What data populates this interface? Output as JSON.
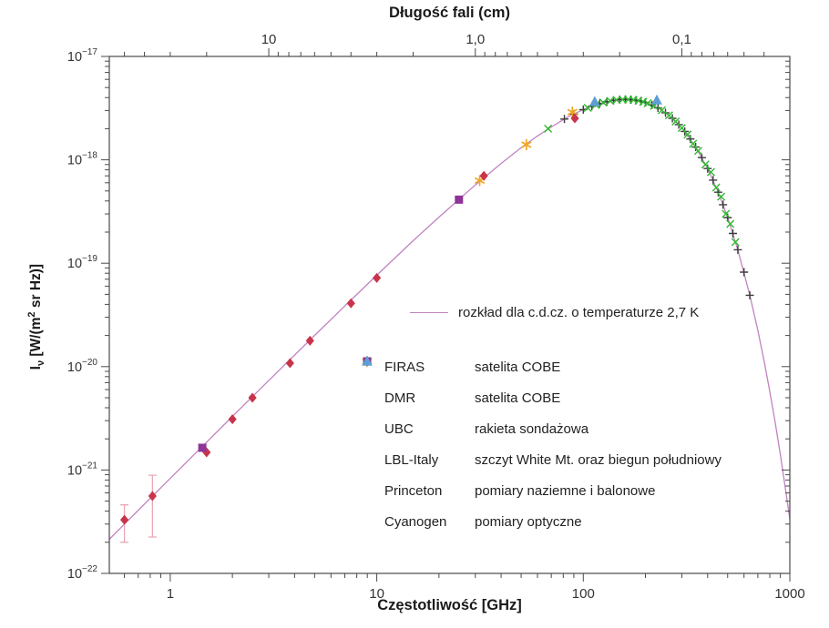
{
  "titles": {
    "top_axis_title": "Długość fali (cm)",
    "bottom_axis_title": "Częstotliwość [GHz]",
    "ylabel_parts": {
      "sym": "I",
      "sym_sub": "ν",
      "unit_pre": " [W/(m",
      "unit_sup": "2",
      "unit_post": " sr Hz)]"
    }
  },
  "legend": {
    "curve_label": "rozkład dla c.d.cz. o temperaturze 2,7 K",
    "entries": [
      {
        "name": "FIRAS",
        "desc": "satelita COBE"
      },
      {
        "name": "DMR",
        "desc": "satelita COBE"
      },
      {
        "name": "UBC",
        "desc": "rakieta sondażowa"
      },
      {
        "name": "LBL-Italy",
        "desc": "szczyt White Mt. oraz biegun południowy"
      },
      {
        "name": "Princeton",
        "desc": "pomiary naziemne i balonowe"
      },
      {
        "name": "Cyanogen",
        "desc": "pomiary optyczne"
      }
    ]
  },
  "colors": {
    "curve": "#c083c0",
    "error_bar": "#e8a9b5",
    "axis": "#4a4a4a",
    "tick_text": "#333333"
  },
  "chart_data": {
    "type": "scatter",
    "title": "",
    "xlabel": "Częstotliwość [GHz]",
    "ylabel": "Iν [W/(m² sr Hz)]",
    "top_xlabel": "Długość fali (cm)",
    "x_axis": {
      "scale": "log",
      "min": 0.507,
      "max": 1000,
      "major": [
        {
          "freq": 1,
          "label": "1"
        },
        {
          "freq": 10,
          "label": "10"
        },
        {
          "freq": 100,
          "label": "100"
        },
        {
          "freq": 1000,
          "label": "1000"
        }
      ]
    },
    "top_axis": {
      "scale": "log",
      "unit": "cm",
      "wavelength_freq_product_cm_GHz": 30,
      "major": [
        {
          "freq": 3,
          "label": "10"
        },
        {
          "freq": 30,
          "label": "1,0"
        },
        {
          "freq": 300,
          "label": "0,1"
        }
      ],
      "minor_wavelengths_cm": [
        50,
        40,
        30,
        20,
        9,
        8,
        7,
        6,
        5,
        4,
        3,
        2,
        0.9,
        0.8,
        0.7,
        0.6,
        0.5,
        0.4,
        0.3,
        0.2,
        0.09,
        0.08,
        0.07,
        0.06,
        0.05,
        0.04
      ]
    },
    "y_axis": {
      "scale": "log",
      "min": 1e-22,
      "max": 1e-17,
      "exponents": [
        -17,
        -18,
        -19,
        -20,
        -21,
        -22
      ]
    },
    "curve": {
      "name": "rozkład dla c.d.cz. o temperaturze 2,7 K",
      "temperature_label": "2,7 K",
      "points": [
        [
          0.507,
          2.14e-22
        ],
        [
          0.6,
          3e-22
        ],
        [
          0.8,
          5.32e-22
        ],
        [
          1.0,
          8.3e-22
        ],
        [
          1.5,
          1.86e-21
        ],
        [
          2,
          3.29e-21
        ],
        [
          3,
          7.34e-21
        ],
        [
          5,
          2e-20
        ],
        [
          7,
          3.86e-20
        ],
        [
          10,
          7.66e-20
        ],
        [
          15,
          1.65e-19
        ],
        [
          20,
          2.79e-19
        ],
        [
          30,
          5.72e-19
        ],
        [
          40,
          9.23e-19
        ],
        [
          50,
          1.31e-18
        ],
        [
          60,
          1.7e-18
        ],
        [
          70,
          2.08e-18
        ],
        [
          85,
          2.63e-18
        ],
        [
          100,
          3.06e-18
        ],
        [
          120,
          3.5e-18
        ],
        [
          140,
          3.76e-18
        ],
        [
          160,
          3.84e-18
        ],
        [
          180,
          3.77e-18
        ],
        [
          200,
          3.59e-18
        ],
        [
          230,
          3.18e-18
        ],
        [
          260,
          2.69e-18
        ],
        [
          300,
          2.03e-18
        ],
        [
          350,
          1.33e-18
        ],
        [
          400,
          8.23e-19
        ],
        [
          450,
          4.86e-19
        ],
        [
          500,
          2.76e-19
        ],
        [
          560,
          1.35e-19
        ],
        [
          640,
          4.9e-20
        ],
        [
          700,
          2.24e-20
        ],
        [
          750,
          1.14e-20
        ],
        [
          800,
          5.74e-21
        ],
        [
          850,
          2.86e-21
        ],
        [
          900,
          1.41e-21
        ],
        [
          950,
          6.85e-22
        ],
        [
          1000,
          3.35e-22
        ]
      ]
    },
    "series": [
      {
        "name": "FIRAS",
        "marker": "plus",
        "color": "#3c3c3c",
        "points": [
          [
            81,
            2.48e-18
          ],
          [
            90,
            2.77e-18
          ],
          [
            100,
            3.06e-18
          ],
          [
            110,
            3.3e-18
          ],
          [
            120,
            3.5e-18
          ],
          [
            130,
            3.65e-18
          ],
          [
            140,
            3.76e-18
          ],
          [
            150,
            3.82e-18
          ],
          [
            160,
            3.84e-18
          ],
          [
            170,
            3.82e-18
          ],
          [
            180,
            3.77e-18
          ],
          [
            190,
            3.69e-18
          ],
          [
            200,
            3.59e-18
          ],
          [
            215,
            3.4e-18
          ],
          [
            230,
            3.18e-18
          ],
          [
            250,
            2.85e-18
          ],
          [
            270,
            2.52e-18
          ],
          [
            290,
            2.19e-18
          ],
          [
            310,
            1.88e-18
          ],
          [
            330,
            1.59e-18
          ],
          [
            350,
            1.33e-18
          ],
          [
            375,
            1.05e-18
          ],
          [
            400,
            8.23e-19
          ],
          [
            425,
            6.36e-19
          ],
          [
            450,
            4.86e-19
          ],
          [
            475,
            3.68e-19
          ],
          [
            500,
            2.76e-19
          ],
          [
            530,
            1.94e-19
          ],
          [
            560,
            1.35e-19
          ],
          [
            600,
            8.2e-20
          ],
          [
            640,
            4.9e-20
          ]
        ]
      },
      {
        "name": "DMR",
        "marker": "asterisk",
        "color": "#efa723",
        "points": [
          [
            31.5,
            6.3e-19
          ],
          [
            53,
            1.4e-18
          ],
          [
            88.5,
            2.89e-18
          ]
        ]
      },
      {
        "name": "UBC",
        "marker": "x",
        "color": "#2eb82e",
        "points": [
          [
            67.5,
            2e-18
          ],
          [
            105,
            3.18e-18
          ],
          [
            115,
            3.4e-18
          ],
          [
            125,
            3.58e-18
          ],
          [
            135,
            3.71e-18
          ],
          [
            145,
            3.79e-18
          ],
          [
            155,
            3.83e-18
          ],
          [
            165,
            3.83e-18
          ],
          [
            175,
            3.8e-18
          ],
          [
            185,
            3.73e-18
          ],
          [
            195,
            3.64e-18
          ],
          [
            205,
            3.53e-18
          ],
          [
            220,
            3.33e-18
          ],
          [
            240,
            3.02e-18
          ],
          [
            260,
            2.69e-18
          ],
          [
            280,
            2.35e-18
          ],
          [
            300,
            2.03e-18
          ],
          [
            320,
            1.76e-18
          ],
          [
            340,
            1.43e-18
          ],
          [
            360,
            1.22e-18
          ],
          [
            390,
            9e-19
          ],
          [
            415,
            7.6e-19
          ],
          [
            440,
            5.4e-19
          ],
          [
            465,
            4.4e-19
          ],
          [
            490,
            3e-19
          ],
          [
            515,
            2.4e-19
          ],
          [
            545,
            1.6e-19
          ]
        ]
      },
      {
        "name": "LBL-Italy",
        "marker": "diamond",
        "color": "#c8354b",
        "points": [
          [
            0.6,
            3.3e-22
          ],
          [
            0.82,
            5.6e-22
          ],
          [
            1.5,
            1.48e-21
          ],
          [
            2.0,
            3.1e-21
          ],
          [
            2.5,
            5e-21
          ],
          [
            3.8,
            1.08e-20
          ],
          [
            4.75,
            1.78e-20
          ],
          [
            7.5,
            4.1e-20
          ],
          [
            10,
            7.2e-20
          ],
          [
            33,
            7e-19
          ],
          [
            91,
            2.52e-18
          ]
        ],
        "error_bars": [
          {
            "x": 0.6,
            "low": 2e-22,
            "high": 4.6e-22
          },
          {
            "x": 0.82,
            "low": 2.25e-22,
            "high": 8.9e-22
          }
        ]
      },
      {
        "name": "Princeton",
        "marker": "square",
        "color": "#8e3596",
        "points": [
          [
            1.43,
            1.64e-21
          ],
          [
            25,
            4.12e-19
          ]
        ]
      },
      {
        "name": "Cyanogen",
        "marker": "triangle",
        "color": "#5c9fd6",
        "points": [
          [
            113.6,
            3.65e-18
          ],
          [
            227,
            3.78e-18
          ]
        ]
      }
    ]
  }
}
